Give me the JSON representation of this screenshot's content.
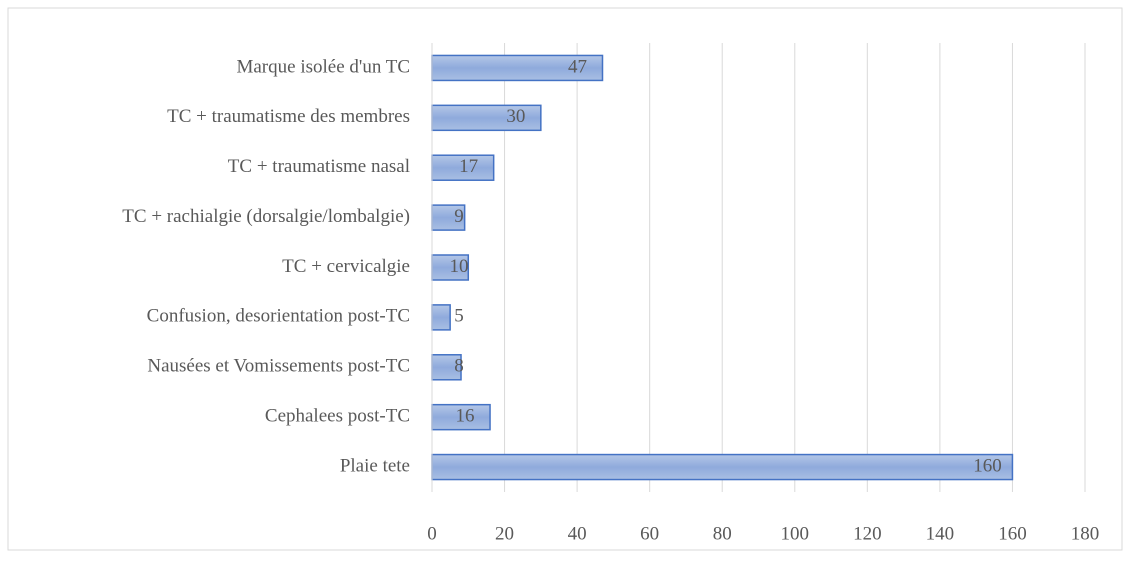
{
  "chart_data": {
    "type": "bar",
    "orientation": "horizontal",
    "categories": [
      "Marque isolée d'un TC",
      "TC + traumatisme des membres",
      "TC + traumatisme nasal",
      "TC + rachialgie (dorsalgie/lombalgie)",
      "TC + cervicalgie",
      "Confusion, desorientation post-TC",
      "Nausées et Vomissements post-TC",
      "Cephalees post-TC",
      "Plaie tete"
    ],
    "values": [
      47,
      30,
      17,
      9,
      10,
      5,
      8,
      16,
      160
    ],
    "color": "#8faadc",
    "xlim": [
      0,
      180
    ],
    "xticks": [
      0,
      20,
      40,
      60,
      80,
      100,
      120,
      140,
      160,
      180
    ],
    "grid": true
  }
}
